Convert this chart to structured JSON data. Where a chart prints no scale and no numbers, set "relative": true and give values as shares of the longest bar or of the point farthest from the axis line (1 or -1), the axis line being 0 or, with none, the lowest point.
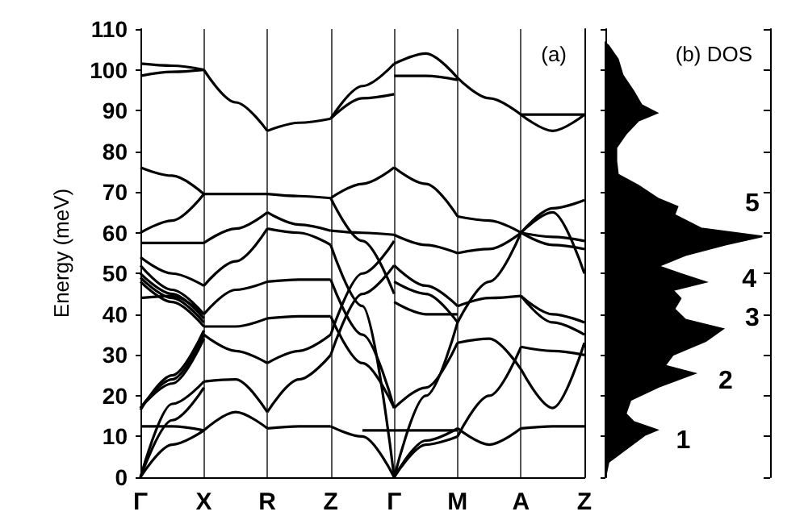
{
  "chart_data": [
    {
      "type": "line",
      "title": "(a)",
      "ylabel": "Energy (meV)",
      "categories": [
        "Γ",
        null,
        "X",
        null,
        "R",
        null,
        "Z",
        null,
        "Γ",
        null,
        "M",
        null,
        "A",
        null,
        "Z"
      ],
      "ylim": [
        0,
        110
      ],
      "yticks": [
        0,
        10,
        20,
        30,
        40,
        50,
        60,
        70,
        80,
        90,
        100,
        110
      ],
      "grid": "x",
      "series": [
        {
          "color": "#000000",
          "values": [
            101.5,
            101,
            100,
            null,
            null,
            null,
            null,
            null,
            null,
            null,
            null,
            null,
            null,
            null,
            null
          ]
        },
        {
          "color": "#000000",
          "values": [
            98.5,
            99.5,
            100,
            null,
            null,
            null,
            null,
            null,
            null,
            null,
            null,
            null,
            null,
            null,
            null
          ]
        },
        {
          "color": "#000000",
          "values": [
            76,
            74,
            69.5,
            null,
            null,
            null,
            null,
            null,
            null,
            null,
            null,
            null,
            null,
            null,
            null
          ]
        },
        {
          "color": "#000000",
          "values": [
            60,
            63,
            69.5,
            null,
            null,
            null,
            null,
            null,
            null,
            null,
            null,
            null,
            null,
            null,
            null
          ]
        },
        {
          "color": "#000000",
          "values": [
            57.5,
            57.5,
            57.5,
            null,
            null,
            null,
            null,
            null,
            null,
            null,
            null,
            null,
            null,
            null,
            null
          ]
        },
        {
          "color": "#000000",
          "values": [
            54,
            50,
            47,
            null,
            null,
            null,
            null,
            null,
            null,
            null,
            null,
            null,
            null,
            null,
            null
          ]
        },
        {
          "color": "#000000",
          "values": [
            52,
            46,
            40,
            null,
            null,
            null,
            null,
            null,
            null,
            null,
            null,
            null,
            null,
            null,
            null
          ]
        },
        {
          "color": "#000000",
          "values": [
            50,
            45,
            39,
            null,
            null,
            null,
            null,
            null,
            null,
            null,
            null,
            null,
            null,
            null,
            null
          ]
        },
        {
          "color": "#000000",
          "values": [
            49,
            44,
            38,
            null,
            null,
            null,
            null,
            null,
            null,
            null,
            null,
            null,
            null,
            null,
            null
          ]
        },
        {
          "color": "#000000",
          "values": [
            48,
            43,
            37,
            null,
            null,
            null,
            null,
            null,
            null,
            null,
            null,
            null,
            null,
            null,
            null
          ]
        },
        {
          "color": "#000000",
          "values": [
            44,
            44.5,
            40,
            null,
            null,
            null,
            null,
            null,
            null,
            null,
            null,
            null,
            null,
            null,
            null
          ]
        },
        {
          "color": "#000000",
          "values": [
            17,
            23,
            34,
            null,
            null,
            null,
            null,
            null,
            null,
            null,
            null,
            null,
            null,
            null,
            null
          ]
        },
        {
          "color": "#000000",
          "values": [
            17,
            24,
            35,
            null,
            null,
            null,
            null,
            null,
            null,
            null,
            null,
            null,
            null,
            null,
            null
          ]
        },
        {
          "color": "#000000",
          "values": [
            16.5,
            25,
            36,
            null,
            null,
            null,
            null,
            null,
            null,
            null,
            null,
            null,
            null,
            null,
            null
          ]
        },
        {
          "color": "#000000",
          "values": [
            0,
            18,
            23.5,
            null,
            null,
            null,
            null,
            null,
            null,
            null,
            null,
            null,
            null,
            null,
            null
          ]
        },
        {
          "color": "#000000",
          "values": [
            0,
            14,
            22,
            null,
            null,
            null,
            null,
            null,
            null,
            null,
            null,
            null,
            null,
            null,
            null
          ]
        },
        {
          "color": "#000000",
          "values": [
            0,
            8,
            11.5,
            null,
            null,
            null,
            null,
            null,
            null,
            null,
            null,
            null,
            null,
            null,
            null
          ]
        },
        {
          "color": "#000000",
          "values": [
            12.5,
            12.5,
            11.5,
            null,
            null,
            null,
            null,
            null,
            null,
            null,
            null,
            null,
            null,
            null,
            null
          ]
        },
        {
          "color": "#000000",
          "values": [
            null,
            null,
            100,
            92,
            85,
            null,
            null,
            null,
            null,
            null,
            null,
            null,
            null,
            null,
            null
          ]
        },
        {
          "color": "#000000",
          "values": [
            null,
            null,
            69.5,
            69.5,
            69.5,
            null,
            null,
            null,
            null,
            null,
            null,
            null,
            null,
            null,
            null
          ]
        },
        {
          "color": "#000000",
          "values": [
            null,
            null,
            57.5,
            61,
            65,
            null,
            null,
            null,
            null,
            null,
            null,
            null,
            null,
            null,
            null
          ]
        },
        {
          "color": "#000000",
          "values": [
            null,
            null,
            47,
            53,
            61,
            null,
            null,
            null,
            null,
            null,
            null,
            null,
            null,
            null,
            null
          ]
        },
        {
          "color": "#000000",
          "values": [
            null,
            null,
            40,
            46,
            48,
            null,
            null,
            null,
            null,
            null,
            null,
            null,
            null,
            null,
            null
          ]
        },
        {
          "color": "#000000",
          "values": [
            null,
            null,
            37,
            37,
            39,
            null,
            null,
            null,
            null,
            null,
            null,
            null,
            null,
            null,
            null
          ]
        },
        {
          "color": "#000000",
          "values": [
            null,
            null,
            35,
            31,
            28,
            null,
            null,
            null,
            null,
            null,
            null,
            null,
            null,
            null,
            null
          ]
        },
        {
          "color": "#000000",
          "values": [
            null,
            null,
            23.5,
            24,
            16,
            null,
            null,
            null,
            null,
            null,
            null,
            null,
            null,
            null,
            null
          ]
        },
        {
          "color": "#000000",
          "values": [
            null,
            null,
            11.5,
            16,
            12,
            null,
            null,
            null,
            null,
            null,
            null,
            null,
            null,
            null,
            null
          ]
        },
        {
          "color": "#000000",
          "values": [
            null,
            null,
            null,
            null,
            85,
            87,
            88,
            null,
            null,
            null,
            null,
            null,
            null,
            null,
            null
          ]
        },
        {
          "color": "#000000",
          "values": [
            null,
            null,
            null,
            null,
            69.5,
            69,
            68.5,
            null,
            null,
            null,
            null,
            null,
            null,
            null,
            null
          ]
        },
        {
          "color": "#000000",
          "values": [
            null,
            null,
            null,
            null,
            65,
            62,
            60.5,
            null,
            null,
            null,
            null,
            null,
            null,
            null,
            null
          ]
        },
        {
          "color": "#000000",
          "values": [
            null,
            null,
            null,
            null,
            61,
            60,
            57,
            null,
            null,
            null,
            null,
            null,
            null,
            null,
            null
          ]
        },
        {
          "color": "#000000",
          "values": [
            null,
            null,
            null,
            null,
            48,
            48.5,
            48.5,
            null,
            null,
            null,
            null,
            null,
            null,
            null,
            null
          ]
        },
        {
          "color": "#000000",
          "values": [
            null,
            null,
            null,
            null,
            39,
            39.5,
            39.5,
            null,
            null,
            null,
            null,
            null,
            null,
            null,
            null
          ]
        },
        {
          "color": "#000000",
          "values": [
            null,
            null,
            null,
            null,
            28,
            31,
            35,
            null,
            null,
            null,
            null,
            null,
            null,
            null,
            null
          ]
        },
        {
          "color": "#000000",
          "values": [
            null,
            null,
            null,
            null,
            16,
            24,
            30,
            null,
            null,
            null,
            null,
            null,
            null,
            null,
            null
          ]
        },
        {
          "color": "#000000",
          "values": [
            null,
            null,
            null,
            null,
            12,
            12.5,
            12.5,
            null,
            null,
            null,
            null,
            null,
            null,
            null,
            null
          ]
        },
        {
          "color": "#000000",
          "values": [
            null,
            null,
            null,
            null,
            null,
            null,
            88,
            96,
            101.5,
            null,
            null,
            null,
            null,
            null,
            null
          ]
        },
        {
          "color": "#000000",
          "values": [
            null,
            null,
            null,
            null,
            null,
            null,
            88,
            93,
            94,
            null,
            null,
            null,
            null,
            null,
            null
          ]
        },
        {
          "color": "#000000",
          "values": [
            null,
            null,
            null,
            null,
            null,
            null,
            68.5,
            72,
            76,
            null,
            null,
            null,
            null,
            null,
            null
          ]
        },
        {
          "color": "#000000",
          "values": [
            null,
            null,
            null,
            null,
            null,
            null,
            68.5,
            58,
            45,
            null,
            null,
            null,
            null,
            null,
            null
          ]
        },
        {
          "color": "#000000",
          "values": [
            null,
            null,
            null,
            null,
            null,
            null,
            60.5,
            60,
            59.5,
            null,
            null,
            null,
            null,
            null,
            null
          ]
        },
        {
          "color": "#000000",
          "values": [
            null,
            null,
            null,
            null,
            null,
            null,
            57,
            42,
            0,
            null,
            null,
            null,
            null,
            null,
            null
          ]
        },
        {
          "color": "#000000",
          "values": [
            null,
            null,
            null,
            null,
            null,
            null,
            48.5,
            35,
            17,
            null,
            null,
            null,
            null,
            null,
            null
          ]
        },
        {
          "color": "#000000",
          "values": [
            null,
            null,
            null,
            null,
            null,
            null,
            35,
            50,
            58,
            null,
            null,
            null,
            null,
            null,
            null
          ]
        },
        {
          "color": "#000000",
          "values": [
            null,
            null,
            null,
            null,
            null,
            null,
            30,
            45,
            52,
            null,
            null,
            null,
            null,
            null,
            null
          ]
        },
        {
          "color": "#000000",
          "values": [
            null,
            null,
            null,
            null,
            null,
            null,
            39.5,
            28,
            17,
            null,
            null,
            null,
            null,
            null,
            null
          ]
        },
        {
          "color": "#000000",
          "values": [
            null,
            null,
            null,
            null,
            null,
            null,
            12.5,
            10,
            0,
            null,
            null,
            null,
            null,
            null,
            null
          ]
        },
        {
          "color": "#000000",
          "values": [
            null,
            null,
            null,
            null,
            null,
            null,
            null,
            11.5,
            11.5,
            11.5,
            11.5,
            null,
            null,
            null,
            null
          ]
        },
        {
          "color": "#000000",
          "values": [
            null,
            null,
            null,
            null,
            null,
            null,
            null,
            null,
            101.5,
            104,
            98,
            null,
            null,
            null,
            null
          ]
        },
        {
          "color": "#000000",
          "values": [
            null,
            null,
            null,
            null,
            null,
            null,
            null,
            null,
            98.5,
            98.5,
            97.5,
            null,
            null,
            null,
            null
          ]
        },
        {
          "color": "#000000",
          "values": [
            null,
            null,
            null,
            null,
            null,
            null,
            null,
            null,
            76,
            72,
            64,
            null,
            null,
            null,
            null
          ]
        },
        {
          "color": "#000000",
          "values": [
            null,
            null,
            null,
            null,
            null,
            null,
            null,
            null,
            59.5,
            57,
            55,
            null,
            null,
            null,
            null
          ]
        },
        {
          "color": "#000000",
          "values": [
            null,
            null,
            null,
            null,
            null,
            null,
            null,
            null,
            52,
            47,
            42,
            null,
            null,
            null,
            null
          ]
        },
        {
          "color": "#000000",
          "values": [
            null,
            null,
            null,
            null,
            null,
            null,
            null,
            null,
            48,
            45,
            38,
            null,
            null,
            null,
            null
          ]
        },
        {
          "color": "#000000",
          "values": [
            null,
            null,
            null,
            null,
            null,
            null,
            null,
            null,
            43,
            40,
            40,
            null,
            null,
            null,
            null
          ]
        },
        {
          "color": "#000000",
          "values": [
            null,
            null,
            null,
            null,
            null,
            null,
            null,
            null,
            17,
            22,
            33,
            null,
            null,
            null,
            null
          ]
        },
        {
          "color": "#000000",
          "values": [
            null,
            null,
            null,
            null,
            null,
            null,
            null,
            null,
            0,
            20,
            38,
            null,
            null,
            null,
            null
          ]
        },
        {
          "color": "#000000",
          "values": [
            null,
            null,
            null,
            null,
            null,
            null,
            null,
            null,
            0,
            9,
            12,
            null,
            null,
            null,
            null
          ]
        },
        {
          "color": "#000000",
          "values": [
            null,
            null,
            null,
            null,
            null,
            null,
            null,
            null,
            0,
            8,
            10,
            null,
            null,
            null,
            null
          ]
        },
        {
          "color": "#000000",
          "values": [
            null,
            null,
            null,
            null,
            null,
            null,
            null,
            null,
            null,
            null,
            98,
            93,
            89,
            null,
            null
          ]
        },
        {
          "color": "#000000",
          "values": [
            null,
            null,
            null,
            null,
            null,
            null,
            null,
            null,
            null,
            null,
            64,
            63,
            60,
            null,
            null
          ]
        },
        {
          "color": "#000000",
          "values": [
            null,
            null,
            null,
            null,
            null,
            null,
            null,
            null,
            null,
            null,
            55,
            56,
            60,
            null,
            null
          ]
        },
        {
          "color": "#000000",
          "values": [
            null,
            null,
            null,
            null,
            null,
            null,
            null,
            null,
            null,
            null,
            42,
            44,
            44.5,
            null,
            null
          ]
        },
        {
          "color": "#000000",
          "values": [
            null,
            null,
            null,
            null,
            null,
            null,
            null,
            null,
            null,
            null,
            38,
            48,
            60,
            null,
            null
          ]
        },
        {
          "color": "#000000",
          "values": [
            null,
            null,
            null,
            null,
            null,
            null,
            null,
            null,
            null,
            null,
            33,
            34,
            26.5,
            null,
            null
          ]
        },
        {
          "color": "#000000",
          "values": [
            null,
            null,
            null,
            null,
            null,
            null,
            null,
            null,
            null,
            null,
            12,
            8,
            12,
            null,
            null
          ]
        },
        {
          "color": "#000000",
          "values": [
            null,
            null,
            null,
            null,
            null,
            null,
            null,
            null,
            null,
            null,
            10,
            20,
            32,
            null,
            null
          ]
        },
        {
          "color": "#000000",
          "values": [
            null,
            null,
            null,
            null,
            null,
            null,
            null,
            null,
            null,
            null,
            null,
            null,
            89,
            85,
            89
          ]
        },
        {
          "color": "#000000",
          "values": [
            null,
            null,
            null,
            null,
            null,
            null,
            null,
            null,
            null,
            null,
            null,
            null,
            89,
            89,
            89
          ]
        },
        {
          "color": "#000000",
          "values": [
            null,
            null,
            null,
            null,
            null,
            null,
            null,
            null,
            null,
            null,
            null,
            null,
            60,
            66,
            68
          ]
        },
        {
          "color": "#000000",
          "values": [
            null,
            null,
            null,
            null,
            null,
            null,
            null,
            null,
            null,
            null,
            null,
            null,
            60,
            65,
            50
          ]
        },
        {
          "color": "#000000",
          "values": [
            null,
            null,
            null,
            null,
            null,
            null,
            null,
            null,
            null,
            null,
            null,
            null,
            60,
            59,
            58
          ]
        },
        {
          "color": "#000000",
          "values": [
            null,
            null,
            null,
            null,
            null,
            null,
            null,
            null,
            null,
            null,
            null,
            null,
            60,
            57,
            56
          ]
        },
        {
          "color": "#000000",
          "values": [
            null,
            null,
            null,
            null,
            null,
            null,
            null,
            null,
            null,
            null,
            null,
            null,
            44.5,
            40,
            38
          ]
        },
        {
          "color": "#000000",
          "values": [
            null,
            null,
            null,
            null,
            null,
            null,
            null,
            null,
            null,
            null,
            null,
            null,
            44.5,
            38,
            35
          ]
        },
        {
          "color": "#000000",
          "values": [
            null,
            null,
            null,
            null,
            null,
            null,
            null,
            null,
            null,
            null,
            null,
            null,
            26.5,
            17,
            33
          ]
        },
        {
          "color": "#000000",
          "values": [
            null,
            null,
            null,
            null,
            null,
            null,
            null,
            null,
            null,
            null,
            null,
            null,
            32,
            31,
            30
          ]
        },
        {
          "color": "#000000",
          "values": [
            null,
            null,
            null,
            null,
            null,
            null,
            null,
            null,
            null,
            null,
            null,
            null,
            12,
            12.5,
            12.5
          ]
        }
      ]
    },
    {
      "type": "area",
      "title": "(b) DOS",
      "orientation": "horizontal",
      "relative": true,
      "ylim": [
        0,
        110
      ],
      "yticks": [
        0,
        10,
        20,
        30,
        40,
        50,
        60,
        70,
        80,
        90,
        100,
        110
      ],
      "tick_labels": false,
      "annotations": [
        "1",
        "2",
        "3",
        "4",
        "5"
      ],
      "series": [
        {
          "color": "#000000",
          "x": [
            0,
            3.7,
            6.3,
            10.3,
            11.6,
            13.6,
            15.6,
            18.9,
            22.2,
            25.5,
            27.4,
            30,
            33.4,
            36.4,
            38.7,
            41.3,
            43.9,
            45.9,
            47.9,
            49.9,
            51.8,
            54.5,
            57.1,
            59.1,
            61.1,
            64.4,
            66.4,
            68.3,
            71.6,
            74.3,
            77.6,
            80.9,
            84.2,
            87.5,
            89.4,
            91.4,
            94.7,
            98.7,
            102.6,
            105.9,
            106.6
          ],
          "values": [
            0,
            0.02,
            0.11,
            0.25,
            0.33,
            0.18,
            0.13,
            0.16,
            0.34,
            0.57,
            0.38,
            0.43,
            0.64,
            0.75,
            0.51,
            0.44,
            0.48,
            0.43,
            0.64,
            0.48,
            0.34,
            0.51,
            0.77,
            1,
            0.61,
            0.44,
            0.46,
            0.34,
            0.21,
            0.08,
            0.07,
            0.07,
            0.13,
            0.21,
            0.33,
            0.23,
            0.18,
            0.11,
            0.08,
            0.02,
            0
          ]
        }
      ]
    }
  ]
}
